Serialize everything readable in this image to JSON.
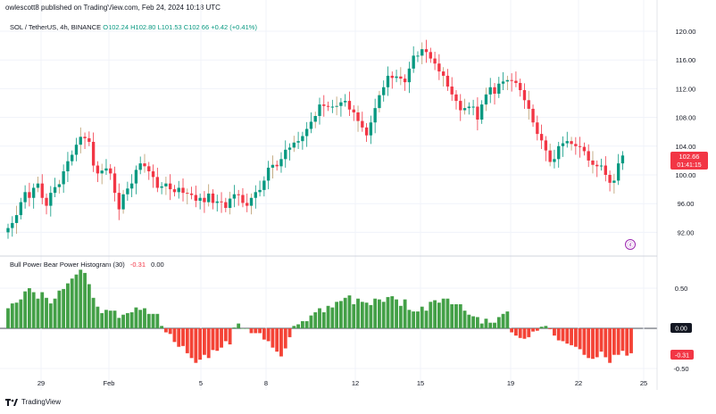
{
  "header": {
    "publish_line": "owlescott8 published on TradingView.com, Feb 24, 2024 10:18 UTC"
  },
  "legend": {
    "symbol": "SOL / TetherUS, 4h, BINANCE",
    "open": "O102.24",
    "high": "H102.80",
    "low": "L101.53",
    "close": "C102.66",
    "change": "+0.42 (+0.41%)"
  },
  "indicator_legend": {
    "name": "Bull Power Bear Power Histogram (30)",
    "value1": "-0.31",
    "value2": "0.00"
  },
  "price_badge": {
    "price": "102.66",
    "countdown": "01:41:15"
  },
  "indicator_badges": {
    "zero": "0.00",
    "value": "-0.31"
  },
  "footer": {
    "brand": "TradingView"
  },
  "colors": {
    "up": "#26a69a",
    "down": "#ef5350",
    "hist_up": "#4caf50",
    "hist_down": "#f44336",
    "wick_flat": "#b89b6a"
  },
  "chart_data": [
    {
      "type": "candlestick",
      "title": "SOL / TetherUS, 4h, BINANCE",
      "ylim": [
        89,
        122
      ],
      "y_ticks": [
        "120.00",
        "116.00",
        "112.00",
        "108.00",
        "104.00",
        "100.00",
        "96.00",
        "92.00"
      ],
      "x_tick_labels": [
        "29",
        "Feb",
        "5",
        "8",
        "12",
        "15",
        "19",
        "22",
        "25"
      ],
      "series": [
        {
          "close": [
            92.6,
            93.3,
            94.4,
            96.2,
            97.6,
            96.8,
            98.2,
            98.8,
            96.8,
            95.7,
            97.5,
            98.3,
            98.7,
            100.5,
            101.9,
            102.8,
            104.2,
            105.3,
            105.1,
            104.6,
            101.3,
            100.2,
            100.6,
            100.9,
            100.2,
            97.5,
            95.2,
            97.3,
            98.1,
            98.8,
            100.7,
            101.6,
            101.2,
            100.5,
            99.7,
            98.2,
            98.4,
            98.8,
            98.0,
            97.6,
            98.2,
            97.5,
            97.4,
            97.2,
            96.4,
            96.8,
            96.2,
            97.4,
            96.1,
            96.3,
            96.2,
            95.4,
            96.7,
            97.3,
            97.2,
            96.1,
            95.7,
            96.8,
            97.6,
            97.9,
            99.2,
            101.0,
            101.4,
            101.2,
            102.2,
            103.5,
            103.8,
            104.5,
            104.7,
            105.4,
            106.4,
            107.4,
            108.2,
            109.8,
            109.6,
            109.5,
            109.5,
            109.6,
            110.1,
            110.3,
            109.1,
            108.7,
            107.5,
            106.6,
            105.5,
            107.3,
            109.3,
            111.1,
            112.2,
            113.8,
            113.5,
            113.7,
            113.4,
            112.9,
            114.8,
            116.6,
            116.6,
            117.5,
            117.1,
            116.2,
            115.5,
            114.4,
            113.8,
            112.3,
            111.2,
            110.3,
            109.0,
            109.3,
            109.5,
            109.5,
            107.7,
            109.8,
            111.2,
            112.2,
            111.3,
            112.7,
            113.0,
            113.2,
            113.1,
            112.8,
            111.8,
            110.4,
            109.2,
            107.3,
            105.7,
            104.8,
            103.4,
            101.8,
            102.2,
            104.0,
            104.4,
            104.7,
            104.3,
            104.0,
            103.9,
            103.3,
            102.0,
            101.4,
            101.2,
            101.3,
            100.0,
            98.9,
            99.2,
            101.6,
            102.7
          ],
          "high_max": 118.9,
          "low_min": 91.8
        }
      ]
    },
    {
      "type": "bar",
      "title": "Bull Power Bear Power Histogram (30)",
      "ylim": [
        -0.62,
        0.74
      ],
      "y_ticks": [
        "0.50",
        "0.00",
        "-0.50"
      ],
      "series": [
        {
          "values": [
            0.25,
            0.31,
            0.32,
            0.36,
            0.46,
            0.5,
            0.45,
            0.37,
            0.45,
            0.38,
            0.31,
            0.37,
            0.47,
            0.49,
            0.56,
            0.62,
            0.67,
            0.73,
            0.69,
            0.55,
            0.38,
            0.27,
            0.19,
            0.23,
            0.22,
            0.22,
            0.13,
            0.17,
            0.19,
            0.2,
            0.26,
            0.23,
            0.25,
            0.18,
            0.18,
            0.18,
            0.03,
            -0.05,
            -0.07,
            -0.17,
            -0.23,
            -0.22,
            -0.31,
            -0.37,
            -0.43,
            -0.39,
            -0.33,
            -0.37,
            -0.27,
            -0.28,
            -0.24,
            -0.16,
            -0.2,
            0.01,
            0.06,
            0.0,
            0.0,
            -0.06,
            -0.06,
            -0.06,
            -0.14,
            -0.16,
            -0.24,
            -0.29,
            -0.35,
            -0.25,
            -0.11,
            0.03,
            0.05,
            0.09,
            0.09,
            0.16,
            0.2,
            0.25,
            0.2,
            0.28,
            0.26,
            0.33,
            0.34,
            0.38,
            0.41,
            0.3,
            0.37,
            0.33,
            0.32,
            0.29,
            0.37,
            0.36,
            0.33,
            0.39,
            0.4,
            0.36,
            0.28,
            0.36,
            0.23,
            0.21,
            0.21,
            0.27,
            0.22,
            0.33,
            0.35,
            0.32,
            0.37,
            0.37,
            0.3,
            0.3,
            0.3,
            0.22,
            0.17,
            0.15,
            0.14,
            0.06,
            0.12,
            0.07,
            0.07,
            0.14,
            0.18,
            0.21,
            -0.05,
            -0.09,
            -0.12,
            -0.13,
            -0.11,
            -0.04,
            -0.03,
            0.02,
            0.03,
            -0.01,
            -0.09,
            -0.15,
            -0.16,
            -0.19,
            -0.21,
            -0.23,
            -0.26,
            -0.33,
            -0.37,
            -0.38,
            -0.36,
            -0.29,
            -0.36,
            -0.43,
            -0.33,
            -0.33,
            -0.28,
            -0.34,
            -0.31
          ]
        }
      ]
    }
  ]
}
